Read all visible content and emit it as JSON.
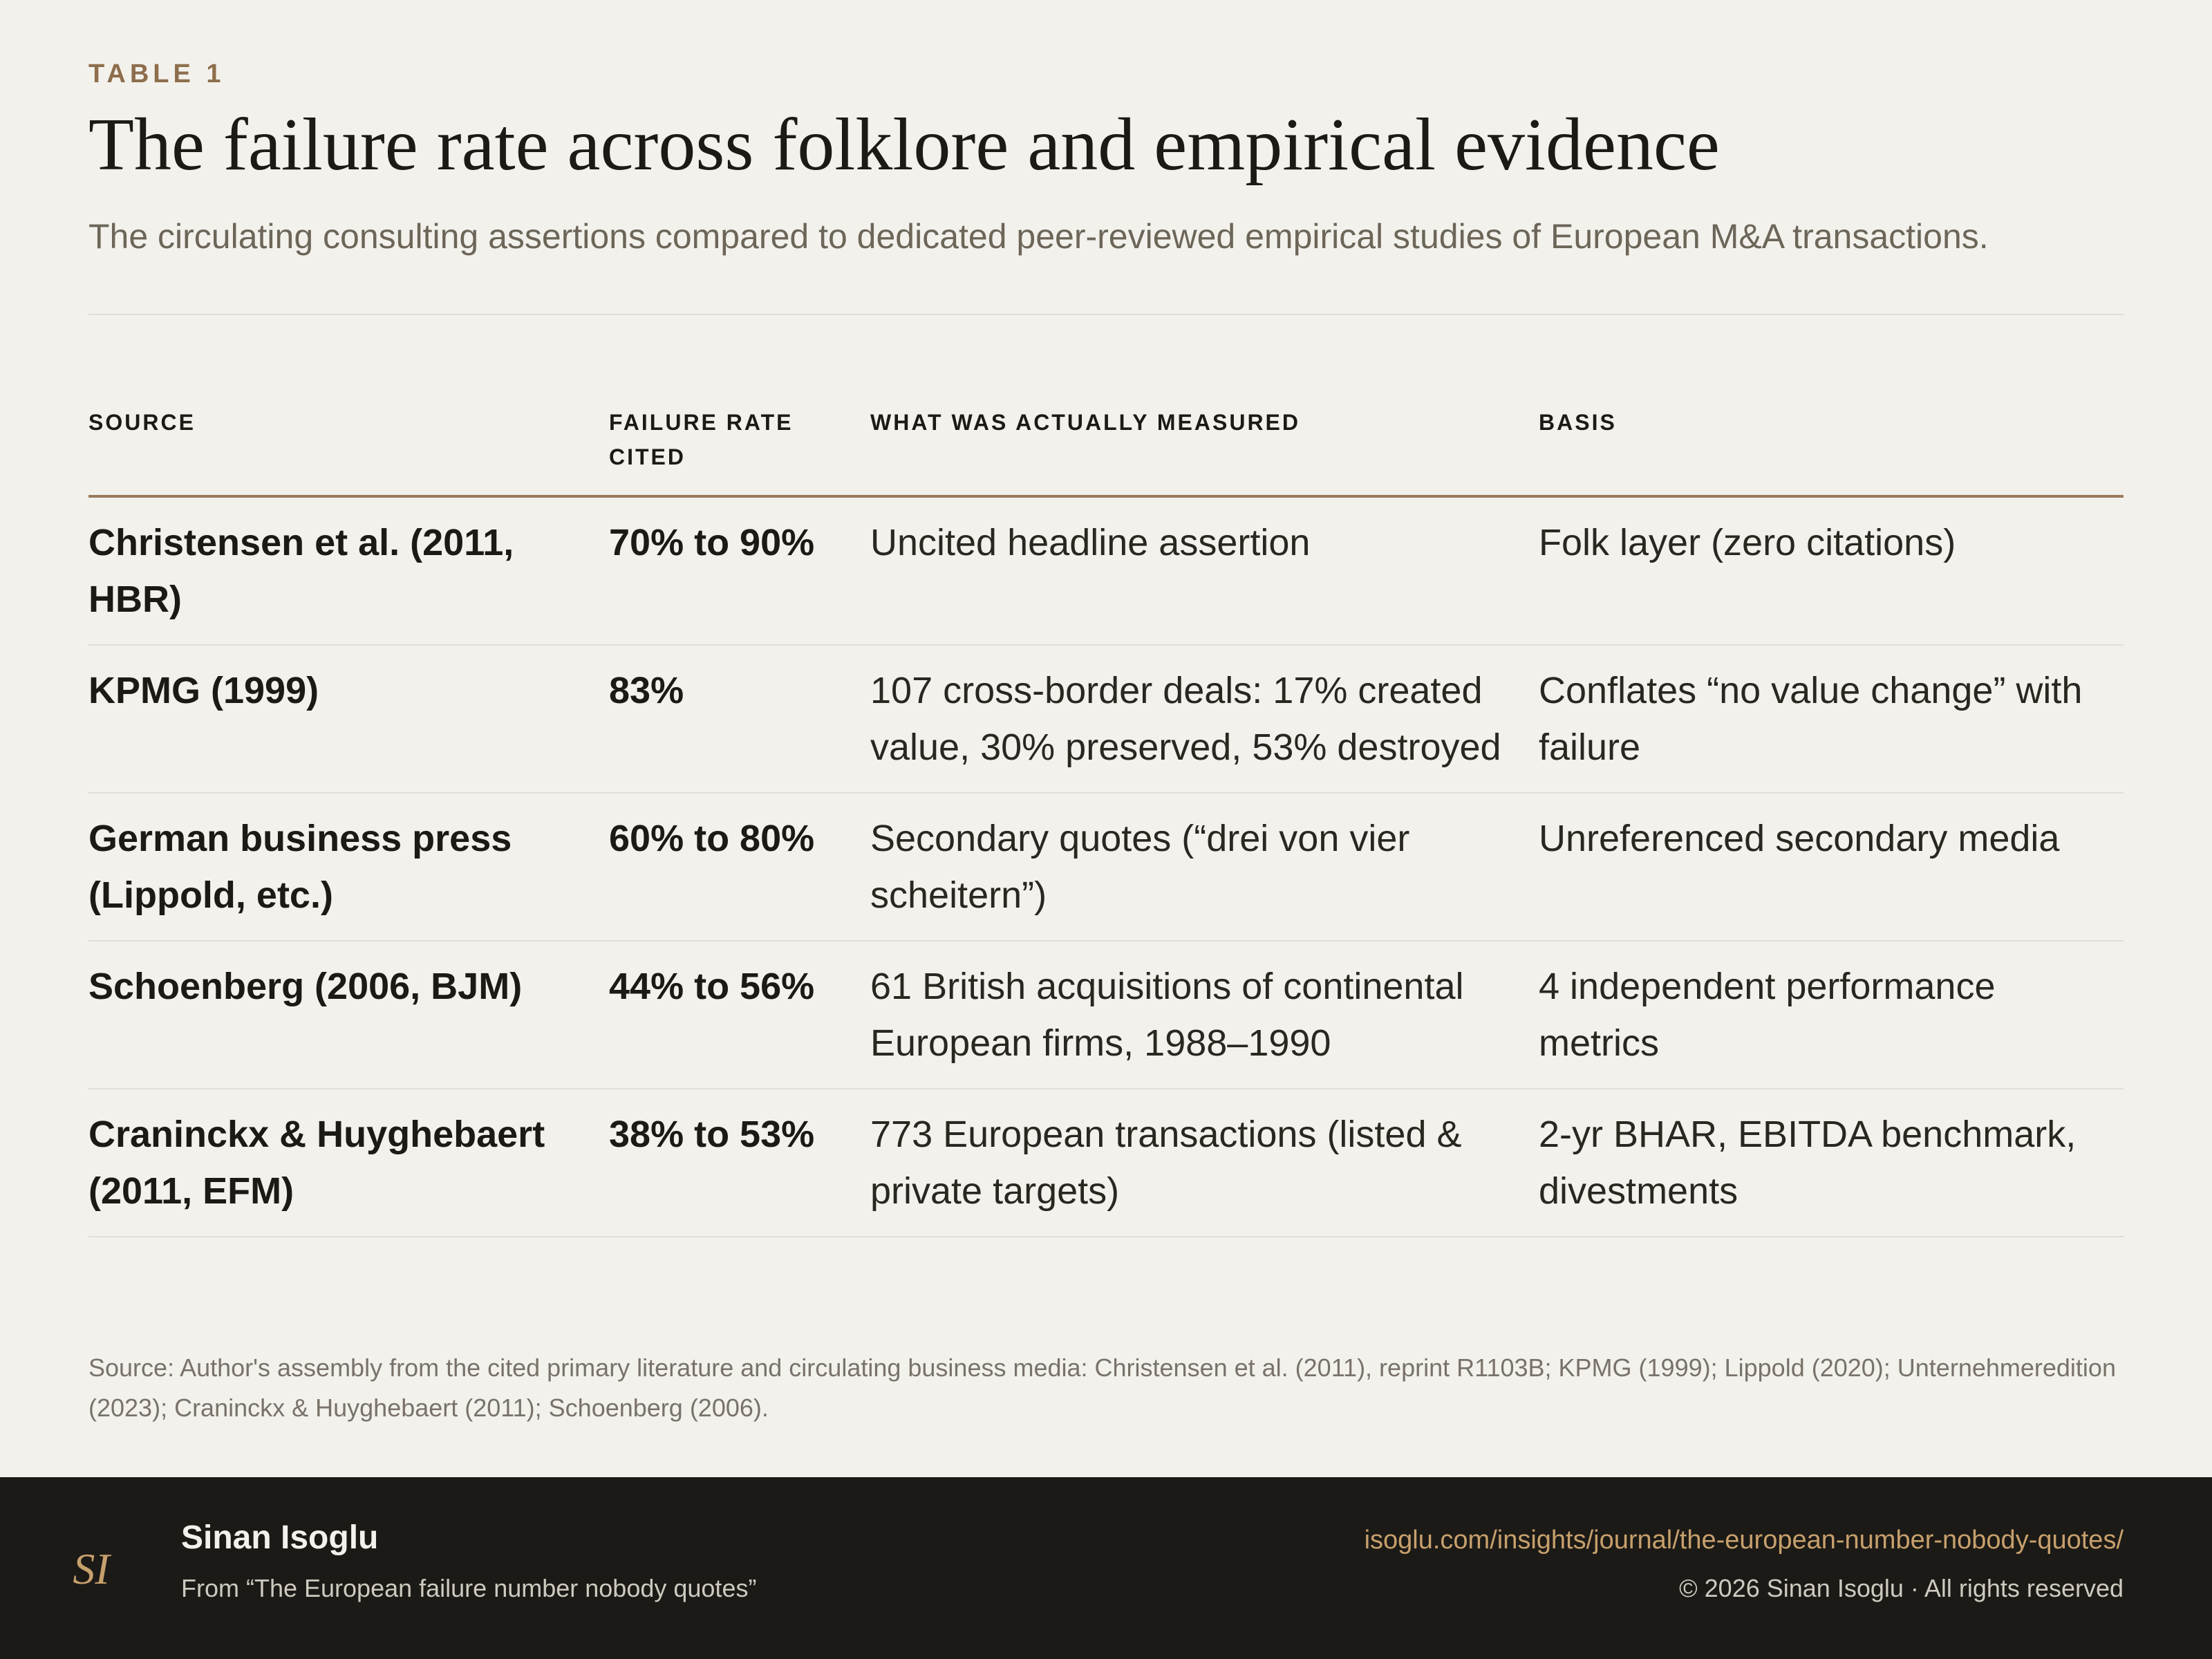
{
  "header": {
    "eyebrow": "TABLE 1",
    "title": "The failure rate across folklore and empirical evidence",
    "subtitle": "The circulating consulting assertions compared to dedicated peer-reviewed empirical studies of European M&A transactions."
  },
  "table": {
    "columns": [
      "SOURCE",
      "FAILURE RATE CITED",
      "WHAT WAS ACTUALLY MEASURED",
      "BASIS"
    ],
    "rows": [
      [
        "Christensen et al. (2011, HBR)",
        "70% to 90%",
        "Uncited headline assertion",
        "Folk layer (zero citations)"
      ],
      [
        "KPMG (1999)",
        "83%",
        "107 cross-border deals: 17% created value, 30% preserved, 53% destroyed",
        "Conflates “no value change” with failure"
      ],
      [
        "German business press (Lippold, etc.)",
        "60% to 80%",
        "Secondary quotes (“drei von vier scheitern”)",
        "Unreferenced secondary media"
      ],
      [
        "Schoenberg (2006, BJM)",
        "44% to 56%",
        "61 British acquisitions of continental European firms, 1988–1990",
        "4 independent performance metrics"
      ],
      [
        "Craninckx & Huyghebaert (2011, EFM)",
        "38% to 53%",
        "773 European transactions (listed & private targets)",
        "2-yr BHAR, EBITDA benchmark, divestments"
      ]
    ]
  },
  "source_note": "Source: Author's assembly from the cited primary literature and circulating business media: Christensen et al. (2011), reprint R1103B; KPMG (1999); Lippold (2020); Unternehmeredition (2023); Craninckx & Huyghebaert (2011); Schoenberg (2006).",
  "footer": {
    "logo_text": "SI",
    "author": "Sinan Isoglu",
    "from": "From “The European failure number nobody quotes”",
    "url": "isoglu.com/insights/journal/the-european-number-nobody-quotes/",
    "copyright": "© 2026 Sinan Isoglu · All rights reserved"
  },
  "colors": {
    "background": "#f3f1ec",
    "accent": "#8d6e4c",
    "footer_bg": "#1c1a16",
    "link": "#c7a06d"
  }
}
